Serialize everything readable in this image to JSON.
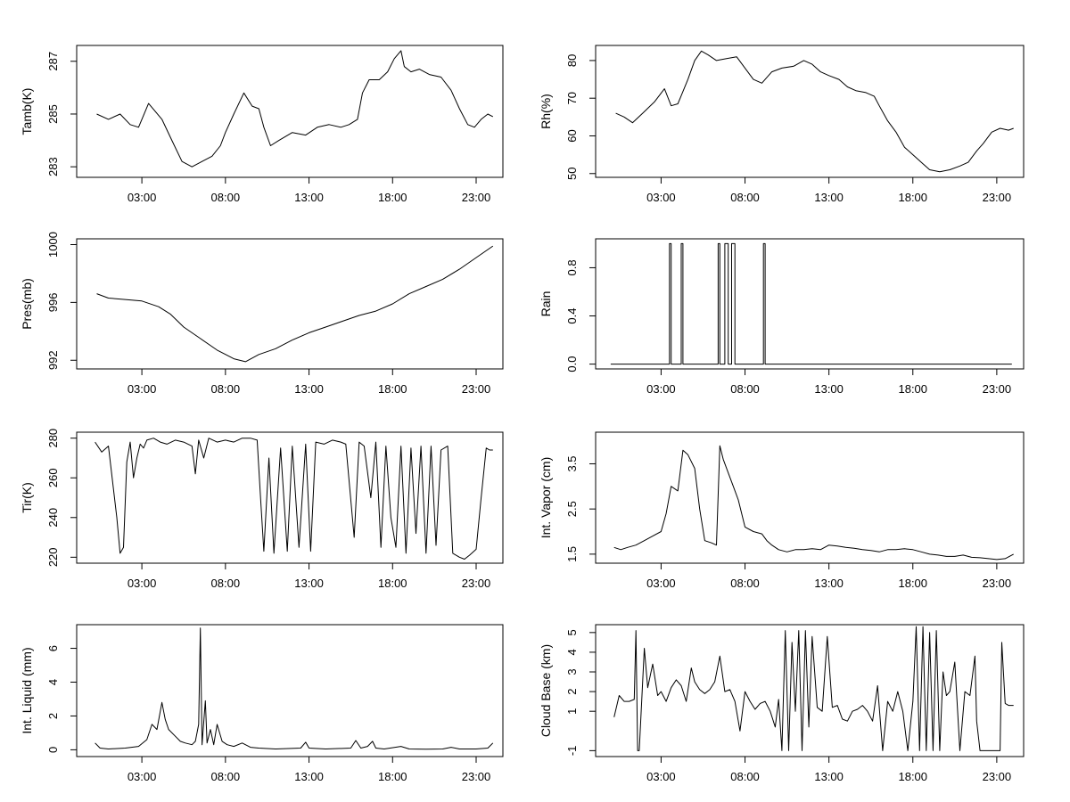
{
  "chart_data": [
    {
      "type": "line",
      "ylabel": "Tamb(K)",
      "xticks": [
        "03:00",
        "08:00",
        "13:00",
        "18:00",
        "23:00"
      ],
      "xlim": [
        -0.9,
        24.6
      ],
      "ylim": [
        282.6,
        287.6
      ],
      "yticks": [
        283,
        285,
        287
      ],
      "series": [
        {
          "x": [
            0.3,
            1,
            1.7,
            2.3,
            2.8,
            3.4,
            4.2,
            4.8,
            5.4,
            6,
            6.6,
            7.2,
            7.7,
            8,
            8.5,
            9.1,
            9.6,
            10,
            10.3,
            10.7,
            11.2,
            12,
            12.8,
            13.5,
            14.2,
            14.9,
            15.4,
            15.9,
            16.2,
            16.6,
            17.2,
            17.7,
            18.1,
            18.5,
            18.7,
            19.1,
            19.6,
            20.2,
            20.9,
            21.5,
            22,
            22.5,
            22.9,
            23.3,
            23.7,
            24
          ],
          "y": [
            285,
            284.8,
            285,
            284.6,
            284.5,
            285.4,
            284.8,
            284,
            283.2,
            283,
            283.2,
            283.4,
            283.8,
            284.3,
            285,
            285.8,
            285.3,
            285.2,
            284.5,
            283.8,
            284,
            284.3,
            284.2,
            284.5,
            284.6,
            284.5,
            284.6,
            284.8,
            285.8,
            286.3,
            286.3,
            286.6,
            287.1,
            287.4,
            286.8,
            286.6,
            286.7,
            286.5,
            286.4,
            285.9,
            285.2,
            284.6,
            284.5,
            284.8,
            285,
            284.9
          ]
        }
      ]
    },
    {
      "type": "line",
      "ylabel": "Rh(%)",
      "xticks": [
        "03:00",
        "08:00",
        "13:00",
        "18:00",
        "23:00"
      ],
      "xlim": [
        -0.9,
        24.6
      ],
      "ylim": [
        49,
        84
      ],
      "yticks": [
        50,
        60,
        70,
        80
      ],
      "series": [
        {
          "x": [
            0.3,
            0.8,
            1.3,
            1.9,
            2.6,
            3.2,
            3.6,
            4,
            4.6,
            5,
            5.4,
            5.8,
            6.3,
            6.9,
            7.5,
            8,
            8.5,
            9,
            9.6,
            10.2,
            10.9,
            11.5,
            12,
            12.5,
            13,
            13.6,
            14.1,
            14.6,
            15.2,
            15.7,
            16,
            16.5,
            17,
            17.5,
            18,
            18.5,
            19,
            19.6,
            20.2,
            20.8,
            21.3,
            21.8,
            22.2,
            22.7,
            23.2,
            23.7,
            24
          ],
          "y": [
            66,
            65,
            63.5,
            66,
            69,
            72.5,
            68,
            68.5,
            75,
            80,
            82.5,
            81.5,
            80,
            80.5,
            81,
            78,
            75,
            74,
            77,
            78,
            78.5,
            80,
            79,
            77,
            76,
            75,
            73,
            72,
            71.5,
            70.5,
            68,
            64,
            61,
            57,
            55,
            53,
            51,
            50.5,
            51,
            52,
            53,
            56,
            58,
            61,
            62,
            61.5,
            62
          ]
        }
      ]
    },
    {
      "type": "line",
      "ylabel": "Pres(mb)",
      "xticks": [
        "03:00",
        "08:00",
        "13:00",
        "18:00",
        "23:00"
      ],
      "xlim": [
        -0.9,
        24.6
      ],
      "ylim": [
        991.4,
        1000.4
      ],
      "yticks": [
        992,
        996,
        1000
      ],
      "series": [
        {
          "x": [
            0.3,
            1,
            2,
            3,
            4,
            4.7,
            5.5,
            6.5,
            7.5,
            8.5,
            9.2,
            10,
            11,
            12,
            13,
            14,
            15,
            16,
            17,
            18,
            19,
            20,
            21,
            22,
            23,
            24
          ],
          "y": [
            996.6,
            996.3,
            996.2,
            996.1,
            995.7,
            995.2,
            994.3,
            993.5,
            992.7,
            992.1,
            991.9,
            992.4,
            992.8,
            993.4,
            993.9,
            994.3,
            994.7,
            995.1,
            995.4,
            995.9,
            996.6,
            997.1,
            997.6,
            998.3,
            999.1,
            999.9
          ]
        }
      ]
    },
    {
      "type": "line",
      "ylabel": "Rain",
      "xticks": [
        "03:00",
        "08:00",
        "13:00",
        "18:00",
        "23:00"
      ],
      "xlim": [
        -0.9,
        24.6
      ],
      "ylim": [
        -0.04,
        1.04
      ],
      "yticks": [
        0.0,
        0.4,
        0.8
      ],
      "ytick_labels": [
        "0.0",
        "0.4",
        "0.8"
      ],
      "series": [
        {
          "x": [
            0.0,
            3.5,
            3.5,
            3.6,
            3.6,
            4.2,
            4.2,
            4.3,
            4.3,
            6.4,
            6.4,
            6.5,
            6.5,
            6.8,
            6.8,
            7.0,
            7.0,
            7.2,
            7.2,
            7.4,
            7.4,
            9.1,
            9.1,
            9.2,
            9.2,
            23.9
          ],
          "y": [
            0,
            0,
            1,
            1,
            0,
            0,
            1,
            1,
            0,
            0,
            1,
            1,
            0,
            0,
            1,
            1,
            0,
            0,
            1,
            1,
            0,
            0,
            1,
            1,
            0,
            0
          ]
        }
      ]
    },
    {
      "type": "line",
      "ylabel": "Tir(K)",
      "xticks": [
        "03:00",
        "08:00",
        "13:00",
        "18:00",
        "23:00"
      ],
      "xlim": [
        -0.9,
        24.6
      ],
      "ylim": [
        217,
        283
      ],
      "yticks": [
        220,
        240,
        260,
        280
      ],
      "series": [
        {
          "x": [
            0.2,
            0.6,
            1,
            1.5,
            1.7,
            1.9,
            2.1,
            2.3,
            2.5,
            2.7,
            2.9,
            3.1,
            3.3,
            3.7,
            4.1,
            4.5,
            5,
            5.5,
            6,
            6.2,
            6.4,
            6.7,
            7,
            7.5,
            8,
            8.5,
            9,
            9.5,
            9.9,
            10.1,
            10.3,
            10.6,
            10.9,
            11.3,
            11.7,
            12,
            12.4,
            12.8,
            13.1,
            13.4,
            13.9,
            14.4,
            14.9,
            15.2,
            15.7,
            16,
            16.3,
            16.7,
            17,
            17.3,
            17.6,
            17.9,
            18.2,
            18.5,
            18.8,
            19.1,
            19.4,
            19.7,
            20,
            20.3,
            20.6,
            20.9,
            21.3,
            21.6,
            22,
            22.3,
            22.6,
            23,
            23.3,
            23.6,
            23.8,
            24
          ],
          "y": [
            278,
            273,
            276,
            240,
            222,
            225,
            268,
            278,
            260,
            270,
            277,
            275,
            279,
            280,
            278,
            277,
            279,
            278,
            276,
            262,
            279,
            270,
            280,
            278,
            279,
            278,
            280,
            280,
            279,
            250,
            223,
            270,
            222,
            275,
            223,
            276,
            225,
            277,
            223,
            278,
            277,
            279,
            278,
            277,
            230,
            278,
            276,
            250,
            278,
            225,
            276,
            240,
            225,
            276,
            222,
            275,
            232,
            276,
            222,
            276,
            226,
            274,
            276,
            222,
            220,
            219,
            221,
            224,
            250,
            275,
            274,
            274
          ]
        }
      ]
    },
    {
      "type": "line",
      "ylabel": "Int. Vapor (cm)",
      "xticks": [
        "03:00",
        "08:00",
        "13:00",
        "18:00",
        "23:00"
      ],
      "xlim": [
        -0.9,
        24.6
      ],
      "ylim": [
        1.3,
        4.2
      ],
      "yticks": [
        1.5,
        2.5,
        3.5
      ],
      "series": [
        {
          "x": [
            0.2,
            0.6,
            1,
            1.5,
            2,
            2.5,
            3,
            3.3,
            3.6,
            4,
            4.3,
            4.6,
            5,
            5.3,
            5.6,
            6,
            6.3,
            6.5,
            6.7,
            7,
            7.3,
            7.6,
            8,
            8.5,
            9,
            9.3,
            9.6,
            10,
            10.5,
            11,
            11.5,
            12,
            12.5,
            13,
            13.5,
            14,
            14.5,
            15,
            15.5,
            16,
            16.5,
            17,
            17.5,
            18,
            18.5,
            19,
            19.5,
            20,
            20.5,
            21,
            21.5,
            22,
            22.5,
            23,
            23.5,
            24
          ],
          "y": [
            1.65,
            1.6,
            1.65,
            1.7,
            1.8,
            1.9,
            2,
            2.4,
            3,
            2.9,
            3.8,
            3.7,
            3.4,
            2.5,
            1.8,
            1.75,
            1.7,
            3.9,
            3.6,
            3.3,
            3,
            2.7,
            2.1,
            2.0,
            1.95,
            1.8,
            1.7,
            1.6,
            1.55,
            1.6,
            1.6,
            1.62,
            1.6,
            1.7,
            1.68,
            1.65,
            1.63,
            1.6,
            1.58,
            1.55,
            1.6,
            1.6,
            1.62,
            1.6,
            1.55,
            1.5,
            1.48,
            1.45,
            1.45,
            1.48,
            1.43,
            1.42,
            1.4,
            1.38,
            1.4,
            1.5
          ]
        }
      ]
    },
    {
      "type": "line",
      "ylabel": "Int. Liquid (mm)",
      "xticks": [
        "03:00",
        "08:00",
        "13:00",
        "18:00",
        "23:00"
      ],
      "xlim": [
        -0.9,
        24.6
      ],
      "ylim": [
        -0.4,
        7.4
      ],
      "yticks": [
        0,
        2,
        4,
        6
      ],
      "series": [
        {
          "x": [
            0.2,
            0.5,
            1,
            2,
            2.8,
            3.3,
            3.6,
            3.9,
            4.2,
            4.4,
            4.6,
            5,
            5.3,
            5.6,
            6,
            6.2,
            6.4,
            6.5,
            6.6,
            6.8,
            6.9,
            7.1,
            7.3,
            7.5,
            7.8,
            8.1,
            8.5,
            9,
            9.5,
            10,
            11,
            12.5,
            12.8,
            13,
            14,
            15.5,
            15.8,
            16.1,
            16.5,
            16.8,
            17,
            17.5,
            18.5,
            19,
            20,
            21,
            21.5,
            22,
            23,
            23.7,
            24
          ],
          "y": [
            0.4,
            0.1,
            0.05,
            0.1,
            0.2,
            0.6,
            1.5,
            1.2,
            2.8,
            1.8,
            1.2,
            0.8,
            0.5,
            0.4,
            0.3,
            0.5,
            1.5,
            7.2,
            0.3,
            2.9,
            0.4,
            1.2,
            0.3,
            1.5,
            0.5,
            0.3,
            0.2,
            0.4,
            0.15,
            0.1,
            0.05,
            0.1,
            0.45,
            0.1,
            0.05,
            0.1,
            0.55,
            0.1,
            0.2,
            0.5,
            0.1,
            0.05,
            0.2,
            0.05,
            0.03,
            0.05,
            0.15,
            0.05,
            0.05,
            0.1,
            0.4
          ]
        }
      ]
    },
    {
      "type": "line",
      "ylabel": "Cloud Base (km)",
      "xticks": [
        "03:00",
        "08:00",
        "13:00",
        "18:00",
        "23:00"
      ],
      "xlim": [
        -0.9,
        24.6
      ],
      "ylim": [
        -1.3,
        5.4
      ],
      "yticks": [
        -1,
        1,
        2,
        3,
        4,
        5
      ],
      "series": [
        {
          "x": [
            0.2,
            0.5,
            0.8,
            1.1,
            1.4,
            1.5,
            1.6,
            1.7,
            2,
            2.2,
            2.5,
            2.8,
            3,
            3.3,
            3.6,
            3.9,
            4.2,
            4.5,
            4.8,
            5,
            5.3,
            5.6,
            5.9,
            6.2,
            6.5,
            6.8,
            7.1,
            7.4,
            7.7,
            8,
            8.3,
            8.6,
            8.9,
            9.2,
            9.5,
            9.8,
            10,
            10.2,
            10.4,
            10.6,
            10.8,
            11,
            11.2,
            11.4,
            11.6,
            11.8,
            12,
            12.3,
            12.6,
            12.9,
            13.2,
            13.5,
            13.8,
            14.1,
            14.4,
            14.7,
            15,
            15.3,
            15.6,
            15.9,
            16.2,
            16.5,
            16.8,
            17.1,
            17.4,
            17.7,
            18,
            18.2,
            18.4,
            18.6,
            18.8,
            19,
            19.2,
            19.4,
            19.6,
            19.8,
            20,
            20.2,
            20.5,
            20.8,
            21.1,
            21.4,
            21.7,
            21.8,
            22,
            22.5,
            23,
            23.2,
            23.3,
            23.5,
            23.7,
            24
          ],
          "y": [
            0.7,
            1.8,
            1.5,
            1.5,
            1.6,
            5.1,
            -1,
            -1,
            4.2,
            2.2,
            3.4,
            1.8,
            2,
            1.5,
            2.2,
            2.6,
            2.3,
            1.5,
            3.2,
            2.5,
            2.1,
            1.9,
            2.1,
            2.5,
            3.8,
            2,
            2.1,
            1.5,
            0,
            2,
            1.5,
            1.1,
            1.4,
            1.5,
            1,
            0.2,
            1.6,
            -1,
            5.1,
            -1,
            4.5,
            1,
            5.1,
            -1,
            5.1,
            0.2,
            4.8,
            1.2,
            1,
            4.8,
            1.2,
            1.3,
            0.6,
            0.5,
            1,
            1.1,
            1.3,
            1,
            0.5,
            2.3,
            -1,
            1.5,
            1,
            2,
            1,
            -1,
            1.5,
            5.3,
            -1,
            5.3,
            -1,
            5,
            -1,
            5.1,
            -1,
            3,
            1.8,
            2,
            3.5,
            -1,
            2,
            1.8,
            3.8,
            0.5,
            -1,
            -1,
            -1,
            -1,
            4.5,
            1.4,
            1.3,
            1.3
          ]
        }
      ]
    }
  ]
}
